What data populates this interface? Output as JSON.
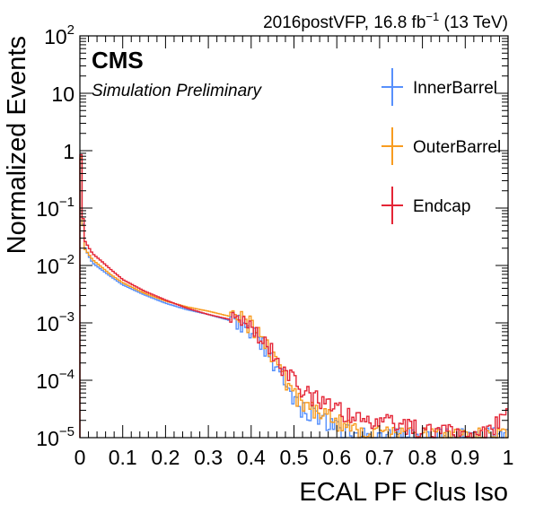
{
  "header": {
    "lumi_prefix": "2016postVFP, 16.8 fb",
    "lumi_exp": "−1",
    "lumi_suffix": " (13 TeV)",
    "cms": "CMS",
    "sim": "Simulation Preliminary"
  },
  "chart_data": {
    "type": "step-histogram",
    "xlabel": "ECAL PF Clus Iso",
    "ylabel": "Normalized Events",
    "xlim": [
      0,
      1
    ],
    "ylim": [
      1e-05,
      100
    ],
    "yscale": "log",
    "grid": false,
    "legend_position": "top-right",
    "x_ticks": [
      "0",
      "0.1",
      "0.2",
      "0.3",
      "0.4",
      "0.5",
      "0.6",
      "0.7",
      "0.8",
      "0.9",
      "1"
    ],
    "y_ticks": [
      {
        "base": "10",
        "exp": "−5",
        "value": 1e-05
      },
      {
        "base": "10",
        "exp": "−4",
        "value": 0.0001
      },
      {
        "base": "10",
        "exp": "−3",
        "value": 0.001
      },
      {
        "base": "10",
        "exp": "−2",
        "value": 0.01
      },
      {
        "base": "10",
        "exp": "−1",
        "value": 0.1
      },
      {
        "base": "1",
        "exp": "",
        "value": 1
      },
      {
        "base": "10",
        "exp": "",
        "value": 10
      },
      {
        "base": "10",
        "exp": "2",
        "value": 100
      }
    ],
    "x": [
      0,
      0.01,
      0.02,
      0.03,
      0.05,
      0.07,
      0.1,
      0.15,
      0.2,
      0.25,
      0.3,
      0.35,
      0.38,
      0.4,
      0.42,
      0.45,
      0.47,
      0.5,
      0.52,
      0.55,
      0.58,
      0.6,
      0.62,
      0.65,
      0.7,
      0.75,
      0.8,
      0.85,
      0.9,
      0.95,
      1.0
    ],
    "series": [
      {
        "name": "InnerBarrel",
        "color": "#5790fc",
        "y": [
          0.7,
          0.022,
          0.015,
          0.011,
          0.0085,
          0.0066,
          0.0046,
          0.0031,
          0.0022,
          0.0017,
          0.0014,
          0.0011,
          0.00085,
          0.00065,
          0.00045,
          0.00022,
          0.00012,
          5e-05,
          3e-05,
          2.5e-05,
          1.8e-05,
          1.4e-05,
          1.2e-05,
          1.1e-05,
          1e-05,
          1e-05,
          1e-05,
          1e-05,
          1e-05,
          1e-05,
          1e-05
        ]
      },
      {
        "name": "OuterBarrel",
        "color": "#f89c20",
        "y": [
          0.75,
          0.02,
          0.016,
          0.0125,
          0.0095,
          0.0071,
          0.005,
          0.0033,
          0.0024,
          0.0019,
          0.0016,
          0.0013,
          0.0011,
          0.00085,
          0.00055,
          0.00025,
          0.00013,
          6e-05,
          3.5e-05,
          3e-05,
          2.3e-05,
          1.8e-05,
          1.6e-05,
          1.3e-05,
          1.1e-05,
          1e-05,
          1e-05,
          1e-05,
          1e-05,
          1e-05,
          1e-05
        ]
      },
      {
        "name": "Endcap",
        "color": "#e42536",
        "y": [
          0.85,
          0.028,
          0.021,
          0.016,
          0.012,
          0.0088,
          0.0057,
          0.0036,
          0.0025,
          0.0018,
          0.0014,
          0.00115,
          0.0009,
          0.0007,
          0.0005,
          0.0003,
          0.00018,
          9e-05,
          6e-05,
          4.5e-05,
          3.5e-05,
          3e-05,
          2.5e-05,
          2e-05,
          1.8e-05,
          1.5e-05,
          1.3e-05,
          1.2e-05,
          1.1e-05,
          1.05e-05,
          2.5e-05
        ]
      }
    ]
  }
}
